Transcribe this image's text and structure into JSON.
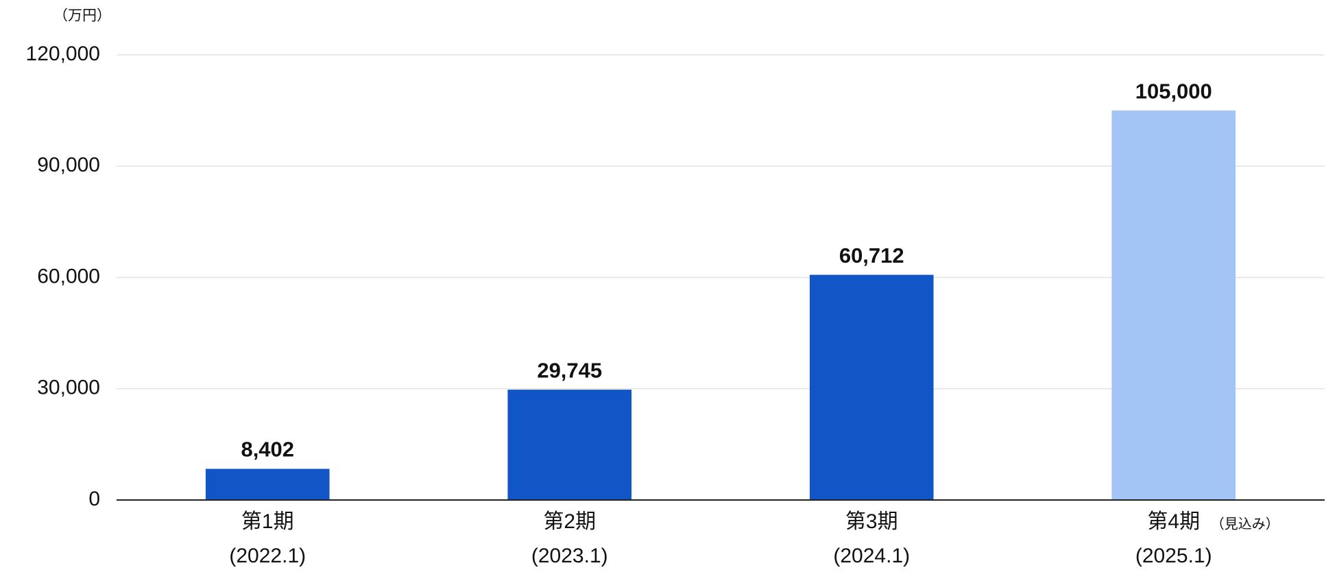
{
  "chart_data": {
    "type": "bar",
    "unit_label": "（万円）",
    "categories": [
      [
        "第1期",
        "(2022.1)"
      ],
      [
        "第2期",
        "(2023.1)"
      ],
      [
        "第3期",
        "(2024.1)"
      ],
      [
        "第4期",
        "(2025.1)"
      ]
    ],
    "annotations": [
      {
        "category": 3,
        "text": "（見込み）"
      }
    ],
    "values": [
      8402,
      29745,
      60712,
      105000
    ],
    "value_labels": [
      "8,402",
      "29,745",
      "60,712",
      "105,000"
    ],
    "colors": [
      "#1155c6",
      "#1155c6",
      "#1155c6",
      "#a3c5f5"
    ],
    "ylim": [
      0,
      120000
    ],
    "yticks": [
      0,
      {
        "value": 30000,
        "label": "30,000"
      },
      {
        "value": 60000,
        "label": "60,000"
      },
      {
        "value": 90000,
        "label": "90,000"
      },
      {
        "value": 120000,
        "label": "120,000"
      }
    ],
    "grid": true
  }
}
